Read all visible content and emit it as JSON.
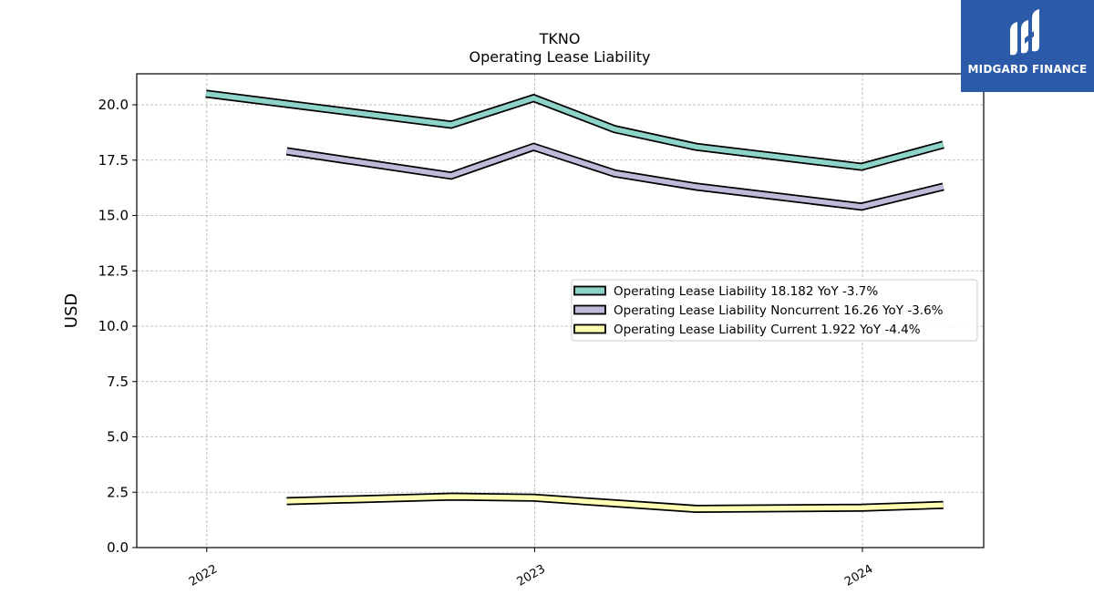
{
  "chart_data": {
    "type": "line",
    "title": "TKNO",
    "subtitle": "Operating Lease Liability",
    "ylabel": "USD",
    "xlabel": "",
    "xlim": [
      "2021-10-15",
      "2024-05-15"
    ],
    "ylim": [
      0,
      21.4
    ],
    "y_ticks": [
      "0.0",
      "2.5",
      "5.0",
      "7.5",
      "10.0",
      "12.5",
      "15.0",
      "17.5",
      "20.0"
    ],
    "x_ticks": [
      {
        "label": "2022",
        "date": "2022-01-01"
      },
      {
        "label": "2023",
        "date": "2023-01-01"
      },
      {
        "label": "2024",
        "date": "2024-01-01"
      }
    ],
    "grid": true,
    "legend_position": "center-right",
    "series": [
      {
        "name": "Operating Lease Liability  18.182 YoY -3.7%",
        "color": "#8dd3c7",
        "points": [
          {
            "x": "2021-12-31",
            "y": 20.5
          },
          {
            "x": "2022-09-30",
            "y": 19.1
          },
          {
            "x": "2022-12-31",
            "y": 20.3
          },
          {
            "x": "2023-03-31",
            "y": 18.9
          },
          {
            "x": "2023-06-30",
            "y": 18.1
          },
          {
            "x": "2023-12-31",
            "y": 17.2
          },
          {
            "x": "2024-03-31",
            "y": 18.2
          }
        ]
      },
      {
        "name": "Operating Lease Liability Noncurrent  16.26 YoY -3.6%",
        "color": "#bebada",
        "points": [
          {
            "x": "2022-03-31",
            "y": 17.9
          },
          {
            "x": "2022-09-30",
            "y": 16.8
          },
          {
            "x": "2022-12-31",
            "y": 18.1
          },
          {
            "x": "2023-03-31",
            "y": 16.9
          },
          {
            "x": "2023-06-30",
            "y": 16.3
          },
          {
            "x": "2023-12-31",
            "y": 15.4
          },
          {
            "x": "2024-03-31",
            "y": 16.3
          }
        ]
      },
      {
        "name": "Operating Lease Liability Current  1.922 YoY -4.4%",
        "color": "#ffffb3",
        "points": [
          {
            "x": "2022-03-31",
            "y": 2.1
          },
          {
            "x": "2022-09-30",
            "y": 2.3
          },
          {
            "x": "2022-12-31",
            "y": 2.25
          },
          {
            "x": "2023-03-31",
            "y": 2.0
          },
          {
            "x": "2023-06-30",
            "y": 1.75
          },
          {
            "x": "2023-12-31",
            "y": 1.8
          },
          {
            "x": "2024-03-31",
            "y": 1.92
          }
        ]
      }
    ]
  },
  "logo": {
    "text": "MIDGARD FINANCE",
    "bg": "#2a5aa8"
  }
}
